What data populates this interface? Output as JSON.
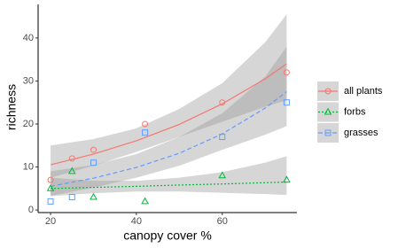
{
  "chart_data": {
    "type": "scatter",
    "x_label": "canopy cover %",
    "y_label": "richness",
    "xlim": [
      17.1,
      77.4
    ],
    "ylim": [
      -0.6,
      47.8
    ],
    "xticks": [
      20,
      40,
      60
    ],
    "yticks": [
      0,
      10,
      20,
      30,
      40
    ],
    "grid": false,
    "legend": "right",
    "band_color": "#999999",
    "series": [
      {
        "name": "all plants",
        "color": "#F8766D",
        "marker": "circle",
        "line_style": "solid",
        "x": [
          20,
          25,
          30,
          42,
          60,
          75
        ],
        "values": [
          7,
          12,
          14,
          20,
          25,
          32
        ],
        "fit": {
          "x": [
            20,
            30,
            40,
            50,
            60,
            70,
            75
          ],
          "values": [
            10.5,
            13.0,
            16.1,
            19.9,
            24.7,
            30.5,
            34.0
          ],
          "lower": [
            7.5,
            10.3,
            13.5,
            17,
            20.5,
            24,
            25.5
          ],
          "upper": [
            15,
            16.5,
            19,
            23.5,
            29.5,
            39,
            45.5
          ]
        }
      },
      {
        "name": "forbs",
        "color": "#00BA38",
        "marker": "triangle",
        "line_style": "dotted",
        "x": [
          20,
          25,
          30,
          42,
          60,
          75
        ],
        "values": [
          5,
          9,
          3,
          2,
          8,
          7
        ],
        "fit": {
          "x": [
            20,
            30,
            40,
            50,
            60,
            70,
            75
          ],
          "values": [
            5.0,
            5.25,
            5.5,
            5.8,
            6.05,
            6.35,
            6.5
          ],
          "lower": [
            3.2,
            3.9,
            4.3,
            4.3,
            4.0,
            3.7,
            3.5
          ],
          "upper": [
            7.5,
            6.8,
            6.8,
            7.5,
            8.8,
            11,
            12.5
          ]
        }
      },
      {
        "name": "grasses",
        "color": "#619CFF",
        "marker": "square",
        "line_style": "dashed",
        "x": [
          20,
          25,
          30,
          42,
          60,
          75
        ],
        "values": [
          2,
          3,
          11,
          18,
          17,
          25
        ],
        "fit": {
          "x": [
            20,
            30,
            40,
            50,
            60,
            70,
            75
          ],
          "values": [
            5.5,
            7.4,
            9.9,
            13.2,
            17.7,
            23.7,
            27.5
          ],
          "lower": [
            3.3,
            5.2,
            7.5,
            10.3,
            14,
            17.5,
            19.5
          ],
          "upper": [
            9,
            10.5,
            13,
            17,
            22.5,
            31,
            38
          ]
        }
      }
    ]
  }
}
